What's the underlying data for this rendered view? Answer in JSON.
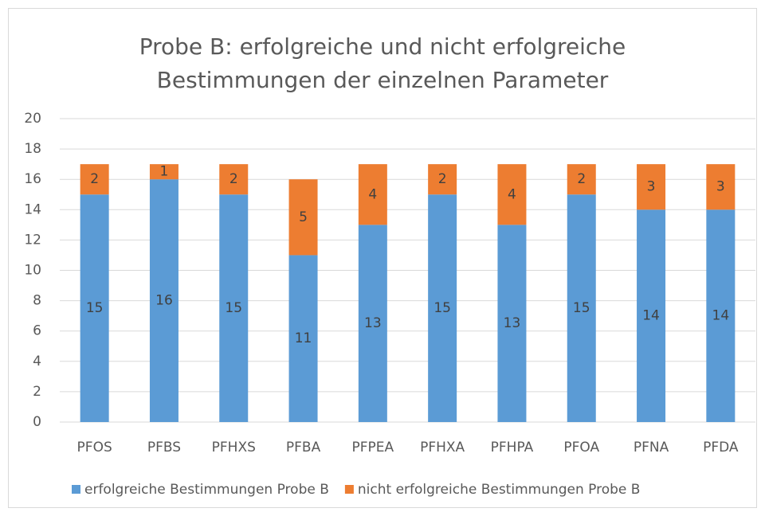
{
  "chart_data": {
    "type": "stacked_bar",
    "title": [
      "Probe B: erfolgreiche und nicht erfolgreiche",
      "Bestimmungen der einzelnen Parameter"
    ],
    "categories": [
      "PFOS",
      "PFBS",
      "PFHXS",
      "PFBA",
      "PFPEA",
      "PFHXA",
      "PFHPA",
      "PFOA",
      "PFNA",
      "PFDA"
    ],
    "series": [
      {
        "name": "erfolgreiche Bestimmungen Probe B",
        "color": "#5b9bd5",
        "values": [
          15,
          16,
          15,
          11,
          13,
          15,
          13,
          15,
          14,
          14
        ]
      },
      {
        "name": "nicht erfolgreiche Bestimmungen Probe B",
        "color": "#ed7d31",
        "values": [
          2,
          1,
          2,
          5,
          4,
          2,
          4,
          2,
          3,
          3
        ]
      }
    ],
    "ylim": [
      0,
      20
    ],
    "yticks": [
      0,
      2,
      4,
      6,
      8,
      10,
      12,
      14,
      16,
      18,
      20
    ],
    "grid": true,
    "legend": "bottom"
  }
}
